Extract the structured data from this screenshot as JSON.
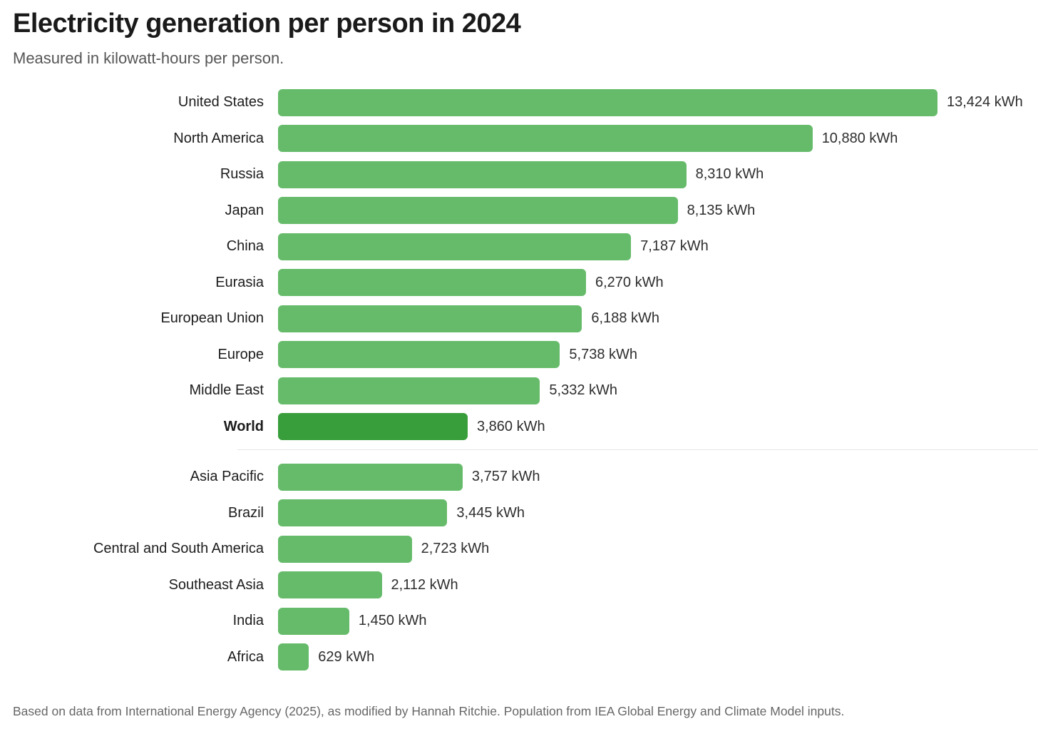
{
  "header": {
    "title": "Electricity generation per person in 2024",
    "subtitle": "Measured in kilowatt-hours per person."
  },
  "footer": {
    "source": "Based on data from International Energy Agency (2025), as modified by Hannah Ritchie. Population from IEA Global Energy and Climate Model inputs."
  },
  "colors": {
    "bar": "#66bb6a",
    "bar_emphasis": "#389e3c",
    "divider": "#e4e4e4"
  },
  "chart_data": {
    "type": "bar",
    "orientation": "horizontal",
    "title": "Electricity generation per person in 2024",
    "subtitle": "Measured in kilowatt-hours per person.",
    "unit": "kWh",
    "xlim": [
      0,
      13424
    ],
    "grid": false,
    "legend": false,
    "categories": [
      "United States",
      "North America",
      "Russia",
      "Japan",
      "China",
      "Eurasia",
      "European Union",
      "Europe",
      "Middle East",
      "World",
      "Asia Pacific",
      "Brazil",
      "Central and South America",
      "Southeast Asia",
      "India",
      "Africa"
    ],
    "values": [
      13424,
      10880,
      8310,
      8135,
      7187,
      6270,
      6188,
      5738,
      5332,
      3860,
      3757,
      3445,
      2723,
      2112,
      1450,
      629
    ],
    "value_labels": [
      "13,424 kWh",
      "10,880 kWh",
      "8,310 kWh",
      "8,135 kWh",
      "7,187 kWh",
      "6,270 kWh",
      "6,188 kWh",
      "5,738 kWh",
      "5,332 kWh",
      "3,860 kWh",
      "3,757 kWh",
      "3,445 kWh",
      "2,723 kWh",
      "2,112 kWh",
      "1,450 kWh",
      "629 kWh"
    ],
    "emphasized_category": "World",
    "divider_after": "World"
  }
}
